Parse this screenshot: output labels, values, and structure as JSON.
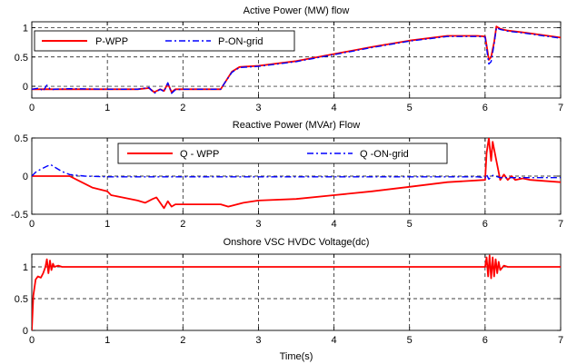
{
  "chart_data": [
    {
      "type": "line",
      "title": "Active Power (MW) flow",
      "xlim": [
        0,
        7
      ],
      "ylim": [
        -0.2,
        1.1
      ],
      "xticks": [
        0,
        1,
        2,
        3,
        4,
        5,
        6,
        7
      ],
      "yticks": [
        0,
        0.5,
        1
      ],
      "ytick_labels": [
        "0",
        "0.5",
        "1"
      ],
      "grid": true,
      "legend_position": "top-left",
      "series": [
        {
          "name": "P-WPP",
          "color": "#ff0000",
          "style": "solid",
          "x": [
            0,
            0.5,
            1.0,
            1.4,
            1.55,
            1.62,
            1.7,
            1.75,
            1.8,
            1.85,
            1.9,
            2.0,
            2.3,
            2.5,
            2.55,
            2.65,
            2.75,
            3.0,
            3.5,
            4.0,
            4.5,
            5.0,
            5.5,
            5.9,
            6.0,
            6.02,
            6.05,
            6.08,
            6.12,
            6.15,
            6.2,
            6.3,
            6.5,
            7.0
          ],
          "y": [
            -0.05,
            -0.05,
            -0.05,
            -0.05,
            -0.03,
            -0.1,
            -0.05,
            -0.08,
            0.05,
            -0.1,
            -0.05,
            -0.05,
            -0.05,
            -0.05,
            0.05,
            0.25,
            0.33,
            0.35,
            0.43,
            0.55,
            0.67,
            0.78,
            0.86,
            0.86,
            0.85,
            0.7,
            0.45,
            0.5,
            0.75,
            1.02,
            0.98,
            0.95,
            0.92,
            0.83
          ]
        },
        {
          "name": "P-ON-grid",
          "color": "#0000ff",
          "style": "dashdot",
          "x": [
            0,
            0.1,
            0.15,
            0.2,
            0.25,
            0.3,
            0.5,
            1.0,
            1.4,
            1.55,
            1.62,
            1.7,
            1.75,
            1.8,
            1.85,
            1.9,
            2.0,
            2.3,
            2.5,
            2.55,
            2.65,
            2.75,
            3.0,
            3.5,
            4.0,
            4.5,
            5.0,
            5.5,
            5.9,
            6.0,
            6.02,
            6.05,
            6.08,
            6.12,
            6.15,
            6.2,
            6.3,
            6.5,
            7.0
          ],
          "y": [
            -0.05,
            -0.03,
            -0.08,
            0.02,
            -0.06,
            -0.05,
            -0.04,
            -0.05,
            -0.05,
            -0.02,
            -0.12,
            -0.05,
            -0.09,
            0.06,
            -0.12,
            -0.06,
            -0.05,
            -0.05,
            -0.05,
            0.05,
            0.24,
            0.32,
            0.34,
            0.42,
            0.54,
            0.66,
            0.77,
            0.85,
            0.85,
            0.84,
            0.65,
            0.38,
            0.42,
            0.72,
            1.0,
            0.97,
            0.94,
            0.91,
            0.82
          ]
        }
      ]
    },
    {
      "type": "line",
      "title": "Reactive Power (MVAr) Flow",
      "xlim": [
        0,
        7
      ],
      "ylim": [
        -0.5,
        0.5
      ],
      "xticks": [
        0,
        1,
        2,
        3,
        4,
        5,
        6,
        7
      ],
      "yticks": [
        -0.5,
        0,
        0.5
      ],
      "ytick_labels": [
        "-0.5",
        "0",
        "0.5"
      ],
      "grid": true,
      "legend_position": "top-center",
      "series": [
        {
          "name": "Q - WPP",
          "color": "#ff0000",
          "style": "solid",
          "x": [
            0,
            0.5,
            0.6,
            0.8,
            1.0,
            1.05,
            1.2,
            1.4,
            1.5,
            1.6,
            1.65,
            1.7,
            1.75,
            1.8,
            1.85,
            1.9,
            2.0,
            2.5,
            2.6,
            2.8,
            3.0,
            3.5,
            4.0,
            4.5,
            5.0,
            5.5,
            6.0,
            6.02,
            6.05,
            6.08,
            6.1,
            6.15,
            6.2,
            6.25,
            6.3,
            6.35,
            6.4,
            6.5,
            6.6,
            7.0
          ],
          "y": [
            0,
            0,
            -0.05,
            -0.15,
            -0.2,
            -0.25,
            -0.28,
            -0.32,
            -0.35,
            -0.3,
            -0.28,
            -0.35,
            -0.42,
            -0.33,
            -0.4,
            -0.37,
            -0.37,
            -0.37,
            -0.4,
            -0.35,
            -0.32,
            -0.3,
            -0.25,
            -0.2,
            -0.14,
            -0.08,
            -0.05,
            0.3,
            0.5,
            0.2,
            0.45,
            0.2,
            -0.05,
            0.02,
            -0.05,
            0.0,
            -0.05,
            -0.03,
            -0.05,
            -0.08
          ]
        },
        {
          "name": "Q -ON-grid",
          "color": "#0000ff",
          "style": "dashdot",
          "x": [
            0,
            0.05,
            0.1,
            0.2,
            0.25,
            0.3,
            0.4,
            0.5,
            0.7,
            1.0,
            2.0,
            3.0,
            4.0,
            5.0,
            5.9,
            6.0,
            6.02,
            6.05,
            6.1,
            6.2,
            7.0
          ],
          "y": [
            0.0,
            0.05,
            0.08,
            0.13,
            0.15,
            0.12,
            0.06,
            0.02,
            0.0,
            -0.01,
            -0.01,
            -0.01,
            -0.01,
            -0.01,
            -0.01,
            -0.02,
            0.02,
            -0.04,
            0.01,
            -0.02,
            -0.02
          ]
        }
      ]
    },
    {
      "type": "line",
      "title": "Onshore VSC HVDC Voltage(dc)",
      "xlabel": "Time(s)",
      "xlim": [
        0,
        7
      ],
      "ylim": [
        0,
        1.2
      ],
      "xticks": [
        0,
        1,
        2,
        3,
        4,
        5,
        6,
        7
      ],
      "yticks": [
        0,
        0.5,
        1
      ],
      "ytick_labels": [
        "0",
        "0.5",
        "1"
      ],
      "grid": true,
      "series": [
        {
          "color": "#ff0000",
          "style": "solid",
          "x": [
            0,
            0.02,
            0.05,
            0.08,
            0.12,
            0.15,
            0.18,
            0.2,
            0.22,
            0.24,
            0.26,
            0.28,
            0.3,
            0.35,
            0.4,
            0.5,
            1.0,
            2.0,
            3.0,
            4.0,
            5.0,
            5.95,
            6.0,
            6.02,
            6.04,
            6.06,
            6.08,
            6.1,
            6.12,
            6.14,
            6.16,
            6.18,
            6.2,
            6.25,
            6.3,
            7.0
          ],
          "y": [
            0.0,
            0.55,
            0.8,
            0.85,
            0.83,
            0.9,
            1.0,
            1.12,
            0.9,
            1.1,
            0.95,
            1.05,
            1.0,
            1.02,
            1.0,
            1.0,
            1.0,
            1.0,
            1.0,
            1.0,
            1.0,
            1.0,
            1.0,
            1.15,
            0.85,
            1.18,
            0.82,
            1.15,
            0.85,
            1.12,
            0.9,
            1.08,
            0.95,
            1.02,
            1.0,
            1.0
          ]
        }
      ]
    }
  ]
}
